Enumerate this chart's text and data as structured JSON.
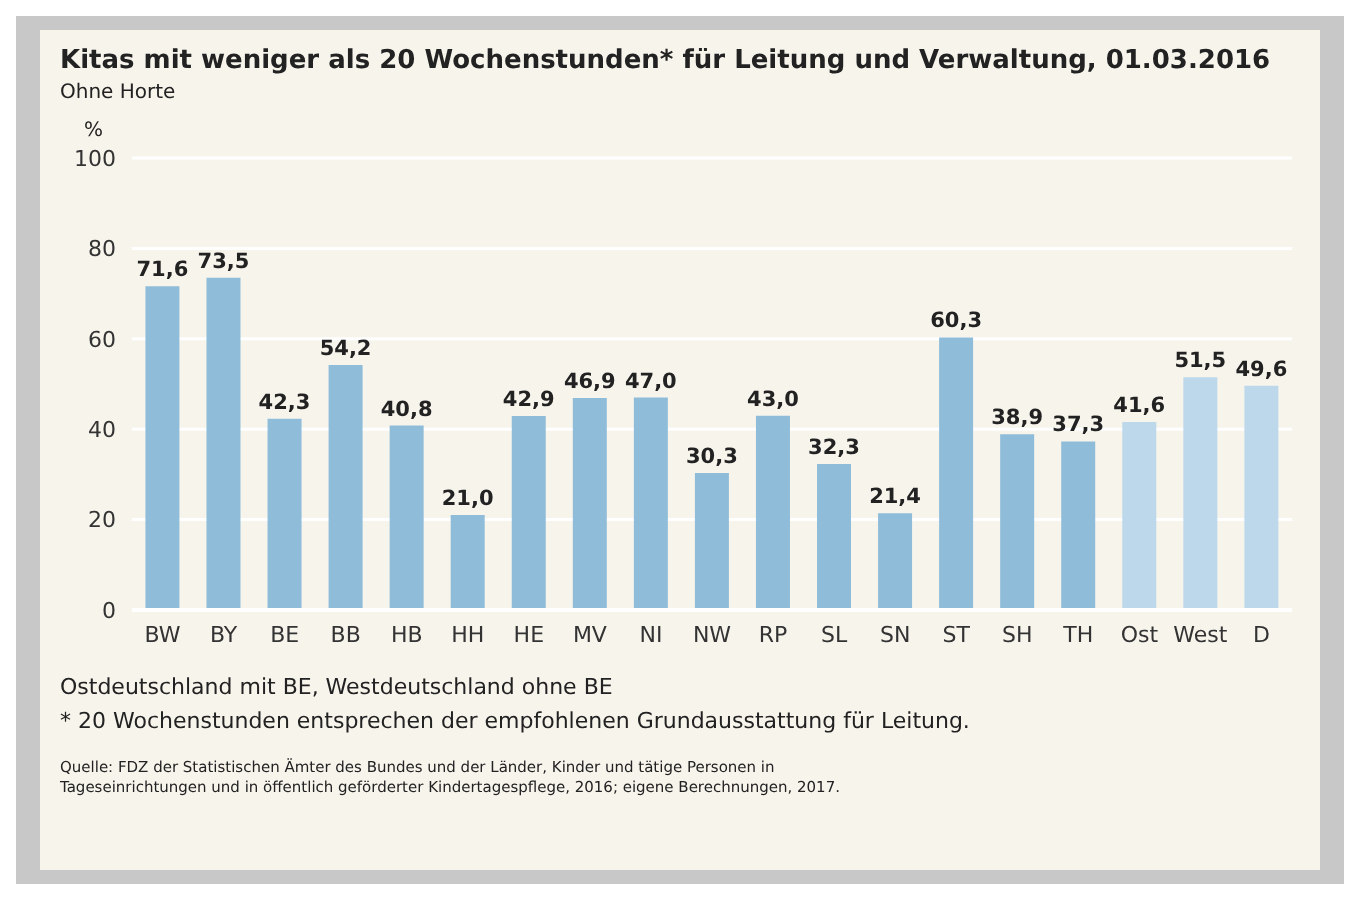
{
  "chart_data": {
    "type": "bar",
    "title": "Kitas mit weniger als 20 Wochenstunden* für Leitung und Verwaltung, 01.03.2016",
    "subtitle": "Ohne Horte",
    "ylabel": "%",
    "categories": [
      "BW",
      "BY",
      "BE",
      "BB",
      "HB",
      "HH",
      "HE",
      "MV",
      "NI",
      "NW",
      "RP",
      "SL",
      "SN",
      "ST",
      "SH",
      "TH",
      "Ost",
      "West",
      "D"
    ],
    "values": [
      71.6,
      73.5,
      42.3,
      54.2,
      40.8,
      21.0,
      42.9,
      46.9,
      47.0,
      30.3,
      43.0,
      32.3,
      21.4,
      60.3,
      38.9,
      37.3,
      41.6,
      51.5,
      49.6
    ],
    "value_labels": [
      "71,6",
      "73,5",
      "42,3",
      "54,2",
      "40,8",
      "21,0",
      "42,9",
      "46,9",
      "47,0",
      "30,3",
      "43,0",
      "32,3",
      "21,4",
      "60,3",
      "38,9",
      "37,3",
      "41,6",
      "51,5",
      "49,6"
    ],
    "colors": [
      "#8fbcd9",
      "#8fbcd9",
      "#8fbcd9",
      "#8fbcd9",
      "#8fbcd9",
      "#8fbcd9",
      "#8fbcd9",
      "#8fbcd9",
      "#8fbcd9",
      "#8fbcd9",
      "#8fbcd9",
      "#8fbcd9",
      "#8fbcd9",
      "#8fbcd9",
      "#8fbcd9",
      "#8fbcd9",
      "#bcd8ea",
      "#bcd8ea",
      "#bcd8ea"
    ],
    "ylim": [
      0,
      100
    ],
    "yticks": [
      0,
      20,
      40,
      60,
      80,
      100
    ],
    "grid": "y",
    "annotations": [
      "Ostdeutschland mit BE, Westdeutschland ohne BE",
      "* 20 Wochenstunden entsprechen der empfohlenen Grundausstattung für Leitung.",
      "Quelle: FDZ der Statistischen Ämter des Bundes und der Länder, Kinder und tätige Personen in Tageseinrichtungen und in öffentlich geförderter Kindertagespflege, 2016; eigene Berechnungen, 2017."
    ]
  }
}
